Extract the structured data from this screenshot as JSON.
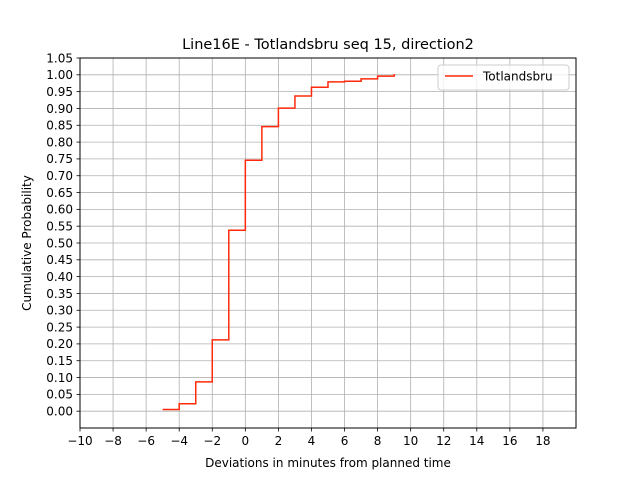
{
  "chart_data": {
    "type": "line",
    "drawstyle": "steps-post",
    "title": "Line16E - Totlandsbru seq 15, direction2",
    "xlabel": "Deviations in minutes from planned time",
    "ylabel": "Cumulative Probability",
    "xlim": [
      -10,
      20
    ],
    "ylim": [
      -0.05,
      1.05
    ],
    "xticks": [
      -10,
      -8,
      -6,
      -4,
      -2,
      0,
      2,
      4,
      6,
      8,
      10,
      12,
      14,
      16,
      18
    ],
    "xtick_labels": [
      "−10",
      "−8",
      "−6",
      "−4",
      "−2",
      "0",
      "2",
      "4",
      "6",
      "8",
      "10",
      "12",
      "14",
      "16",
      "18"
    ],
    "yticks": [
      0.0,
      0.05,
      0.1,
      0.15,
      0.2,
      0.25,
      0.3,
      0.35,
      0.4,
      0.45,
      0.5,
      0.55,
      0.6,
      0.65,
      0.7,
      0.75,
      0.8,
      0.85,
      0.9,
      0.95,
      1.0,
      1.05
    ],
    "ytick_labels": [
      "0.00",
      "0.05",
      "0.10",
      "0.15",
      "0.20",
      "0.25",
      "0.30",
      "0.35",
      "0.40",
      "0.45",
      "0.50",
      "0.55",
      "0.60",
      "0.65",
      "0.70",
      "0.75",
      "0.80",
      "0.85",
      "0.90",
      "0.95",
      "1.00",
      "1.05"
    ],
    "grid": true,
    "legend_position": "top-right",
    "series": [
      {
        "name": "Totlandsbru",
        "color": "#ff2a0c",
        "x": [
          -5,
          -4,
          -3,
          -2,
          -1,
          0,
          1,
          2,
          3,
          4,
          5,
          6,
          7,
          8,
          9
        ],
        "y": [
          0.005,
          0.022,
          0.087,
          0.212,
          0.538,
          0.746,
          0.846,
          0.901,
          0.937,
          0.963,
          0.979,
          0.981,
          0.988,
          0.996,
          1.0
        ]
      }
    ]
  }
}
